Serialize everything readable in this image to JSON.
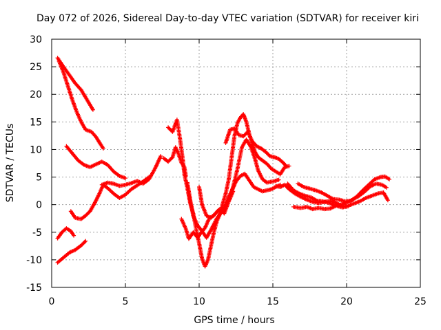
{
  "chart_data": {
    "type": "scatter",
    "title": "Day 072 of 2026, Sidereal Day-to-day VTEC variation (SDTVAR) for receiver kiri",
    "xlabel": "GPS time / hours",
    "ylabel": "SDTVAR / TECUs",
    "xlim": [
      0,
      25
    ],
    "ylim": [
      -15,
      30
    ],
    "xticks": [
      0,
      5,
      10,
      15,
      20,
      25
    ],
    "yticks": [
      -15,
      -10,
      -5,
      0,
      5,
      10,
      15,
      20,
      25,
      30
    ],
    "xtick_labels": [
      "0",
      "5",
      "10",
      "15",
      "20",
      "25"
    ],
    "ytick_labels": [
      "-15",
      "-10",
      "-5",
      "0",
      "5",
      "10",
      "15",
      "20",
      "25",
      "30"
    ],
    "grid": true,
    "marker": "+",
    "color": "#ff0000",
    "series": [
      {
        "name": "s1",
        "points": [
          [
            0.4,
            26.6
          ],
          [
            0.8,
            25.0
          ],
          [
            1.2,
            23.5
          ],
          [
            1.6,
            22.0
          ],
          [
            2.0,
            20.8
          ],
          [
            2.4,
            19.0
          ],
          [
            2.8,
            17.2
          ]
        ]
      },
      {
        "name": "s2",
        "points": [
          [
            0.5,
            26.0
          ],
          [
            0.8,
            24.0
          ],
          [
            1.1,
            21.5
          ],
          [
            1.4,
            19.0
          ],
          [
            1.7,
            16.8
          ],
          [
            2.0,
            15.0
          ],
          [
            2.3,
            13.6
          ],
          [
            2.7,
            13.2
          ],
          [
            3.0,
            12.3
          ],
          [
            3.3,
            11.0
          ],
          [
            3.5,
            10.2
          ]
        ]
      },
      {
        "name": "s3",
        "points": [
          [
            1.0,
            10.6
          ],
          [
            1.4,
            9.3
          ],
          [
            1.8,
            8.0
          ],
          [
            2.2,
            7.2
          ],
          [
            2.6,
            6.8
          ],
          [
            3.0,
            7.3
          ],
          [
            3.4,
            7.8
          ],
          [
            3.8,
            7.2
          ],
          [
            4.2,
            6.0
          ],
          [
            4.6,
            5.2
          ],
          [
            5.0,
            4.8
          ]
        ]
      },
      {
        "name": "s4",
        "points": [
          [
            1.3,
            -1.2
          ],
          [
            1.6,
            -2.4
          ],
          [
            2.0,
            -2.6
          ],
          [
            2.3,
            -2.0
          ],
          [
            2.6,
            -1.2
          ],
          [
            2.9,
            0.2
          ],
          [
            3.2,
            1.8
          ],
          [
            3.5,
            3.6
          ],
          [
            3.8,
            3.0
          ],
          [
            4.2,
            2.0
          ],
          [
            4.6,
            1.2
          ],
          [
            5.0,
            1.8
          ],
          [
            5.4,
            2.8
          ],
          [
            5.8,
            3.5
          ],
          [
            6.2,
            4.2
          ],
          [
            6.6,
            5.0
          ]
        ]
      },
      {
        "name": "s5",
        "points": [
          [
            3.4,
            3.6
          ],
          [
            3.8,
            4.0
          ],
          [
            4.2,
            3.8
          ],
          [
            4.6,
            3.4
          ],
          [
            5.0,
            3.6
          ],
          [
            5.4,
            3.9
          ],
          [
            5.8,
            4.3
          ],
          [
            6.2,
            3.8
          ],
          [
            6.6,
            4.6
          ],
          [
            7.0,
            6.5
          ],
          [
            7.4,
            8.8
          ]
        ]
      },
      {
        "name": "s6",
        "points": [
          [
            0.4,
            -6.1
          ],
          [
            0.7,
            -5.0
          ],
          [
            1.0,
            -4.3
          ],
          [
            1.3,
            -4.8
          ],
          [
            1.5,
            -5.6
          ]
        ]
      },
      {
        "name": "s7",
        "points": [
          [
            0.4,
            -10.5
          ],
          [
            0.8,
            -9.6
          ],
          [
            1.2,
            -8.7
          ],
          [
            1.6,
            -8.2
          ],
          [
            2.0,
            -7.4
          ],
          [
            2.3,
            -6.6
          ]
        ]
      },
      {
        "name": "s8",
        "points": [
          [
            7.9,
            14.0
          ],
          [
            8.2,
            13.2
          ],
          [
            8.5,
            15.4
          ],
          [
            8.7,
            12.0
          ],
          [
            8.9,
            8.0
          ],
          [
            9.0,
            5.5
          ],
          [
            9.2,
            3.0
          ],
          [
            9.4,
            0.2
          ],
          [
            9.6,
            -1.6
          ],
          [
            9.8,
            -4.5
          ],
          [
            10.0,
            -7.0
          ],
          [
            10.2,
            -9.8
          ],
          [
            10.4,
            -11.2
          ],
          [
            10.6,
            -10.0
          ],
          [
            10.8,
            -7.5
          ],
          [
            11.0,
            -5.0
          ],
          [
            11.2,
            -3.0
          ],
          [
            11.4,
            -1.8
          ],
          [
            11.6,
            0.2
          ],
          [
            11.8,
            2.0
          ],
          [
            12.0,
            4.5
          ],
          [
            12.2,
            8.5
          ],
          [
            12.4,
            12.5
          ],
          [
            12.6,
            14.8
          ],
          [
            12.8,
            15.8
          ],
          [
            13.0,
            16.4
          ],
          [
            13.2,
            15.0
          ],
          [
            13.4,
            12.8
          ],
          [
            13.6,
            11.0
          ],
          [
            13.8,
            9.5
          ],
          [
            14.0,
            8.6
          ],
          [
            14.3,
            8.0
          ],
          [
            14.6,
            7.4
          ],
          [
            14.9,
            6.5
          ],
          [
            15.2,
            6.0
          ],
          [
            15.5,
            5.5
          ],
          [
            15.8,
            6.8
          ],
          [
            16.1,
            7.0
          ]
        ]
      },
      {
        "name": "s9",
        "points": [
          [
            7.6,
            8.4
          ],
          [
            7.9,
            7.8
          ],
          [
            8.2,
            8.6
          ],
          [
            8.4,
            10.4
          ],
          [
            8.6,
            9.2
          ],
          [
            8.8,
            7.6
          ],
          [
            9.0,
            6.8
          ],
          [
            9.1,
            5.2
          ]
        ]
      },
      {
        "name": "s10",
        "points": [
          [
            9.2,
            4.0
          ],
          [
            9.4,
            0.8
          ],
          [
            9.6,
            -2.0
          ],
          [
            9.9,
            -3.8
          ],
          [
            10.2,
            -4.8
          ],
          [
            10.5,
            -6.0
          ],
          [
            10.8,
            -4.6
          ],
          [
            11.2,
            -2.5
          ],
          [
            11.6,
            -1.0
          ],
          [
            12.0,
            0.8
          ],
          [
            12.3,
            3.2
          ],
          [
            12.6,
            6.5
          ],
          [
            12.9,
            10.4
          ],
          [
            13.2,
            11.8
          ],
          [
            13.5,
            10.5
          ],
          [
            13.8,
            8.2
          ],
          [
            14.0,
            6.2
          ],
          [
            14.3,
            4.6
          ],
          [
            14.6,
            4.0
          ],
          [
            15.0,
            4.2
          ],
          [
            15.4,
            4.5
          ]
        ]
      },
      {
        "name": "s11",
        "points": [
          [
            8.8,
            -2.6
          ],
          [
            9.1,
            -4.4
          ],
          [
            9.3,
            -6.2
          ],
          [
            9.6,
            -5.0
          ],
          [
            9.9,
            -6.0
          ],
          [
            10.1,
            -5.2
          ],
          [
            10.4,
            -4.2
          ],
          [
            10.7,
            -2.4
          ],
          [
            11.0,
            -2.0
          ],
          [
            11.3,
            -1.0
          ],
          [
            11.6,
            -1.2
          ],
          [
            11.8,
            0.0
          ],
          [
            12.0,
            1.4
          ],
          [
            12.2,
            2.4
          ],
          [
            12.5,
            4.2
          ],
          [
            12.8,
            5.2
          ],
          [
            13.1,
            5.6
          ],
          [
            13.4,
            4.4
          ],
          [
            13.7,
            3.2
          ],
          [
            14.0,
            2.8
          ],
          [
            14.3,
            2.4
          ],
          [
            14.6,
            2.6
          ],
          [
            14.9,
            2.8
          ],
          [
            15.2,
            3.2
          ],
          [
            15.5,
            3.6
          ]
        ]
      },
      {
        "name": "s12",
        "points": [
          [
            10.0,
            3.2
          ],
          [
            10.2,
            0.0
          ],
          [
            10.5,
            -2.0
          ],
          [
            10.8,
            -2.4
          ],
          [
            11.1,
            -1.6
          ],
          [
            11.4,
            -0.8
          ],
          [
            11.7,
            -1.6
          ],
          [
            12.0,
            0.5
          ],
          [
            12.3,
            2.4
          ]
        ]
      },
      {
        "name": "s13",
        "points": [
          [
            11.8,
            11.2
          ],
          [
            12.1,
            13.6
          ],
          [
            12.4,
            13.8
          ],
          [
            12.7,
            12.6
          ],
          [
            13.0,
            12.4
          ],
          [
            13.3,
            13.2
          ],
          [
            13.6,
            11.5
          ],
          [
            13.9,
            10.6
          ],
          [
            14.2,
            10.2
          ],
          [
            14.5,
            9.6
          ],
          [
            14.8,
            8.8
          ],
          [
            15.1,
            8.6
          ],
          [
            15.4,
            8.3
          ],
          [
            15.7,
            7.6
          ],
          [
            15.9,
            7.0
          ]
        ]
      },
      {
        "name": "s14",
        "points": [
          [
            15.2,
            3.4
          ],
          [
            15.5,
            3.2
          ],
          [
            15.8,
            3.6
          ],
          [
            16.1,
            2.8
          ],
          [
            16.5,
            2.0
          ],
          [
            16.9,
            1.4
          ],
          [
            17.3,
            0.9
          ],
          [
            17.7,
            0.5
          ],
          [
            18.1,
            0.3
          ],
          [
            18.5,
            0.5
          ],
          [
            18.9,
            0.7
          ],
          [
            19.3,
            0.3
          ],
          [
            19.7,
            -0.3
          ],
          [
            20.1,
            -0.2
          ],
          [
            20.5,
            0.2
          ],
          [
            20.9,
            0.6
          ],
          [
            21.3,
            1.2
          ],
          [
            21.7,
            1.6
          ],
          [
            22.1,
            2.0
          ],
          [
            22.5,
            2.2
          ],
          [
            22.8,
            0.8
          ]
        ]
      },
      {
        "name": "s15",
        "points": [
          [
            16.0,
            3.8
          ],
          [
            16.4,
            2.6
          ],
          [
            16.8,
            2.0
          ],
          [
            17.2,
            1.6
          ],
          [
            17.6,
            1.3
          ],
          [
            18.0,
            0.7
          ],
          [
            18.4,
            0.6
          ],
          [
            18.8,
            0.3
          ],
          [
            19.2,
            -0.1
          ],
          [
            19.6,
            0.0
          ],
          [
            20.0,
            0.4
          ],
          [
            20.4,
            0.9
          ],
          [
            20.8,
            1.5
          ],
          [
            21.2,
            2.3
          ],
          [
            21.6,
            3.3
          ],
          [
            22.0,
            3.8
          ],
          [
            22.4,
            3.6
          ],
          [
            22.7,
            3.1
          ]
        ]
      },
      {
        "name": "s16",
        "points": [
          [
            16.7,
            3.8
          ],
          [
            17.1,
            3.2
          ],
          [
            17.5,
            2.9
          ],
          [
            17.9,
            2.6
          ],
          [
            18.3,
            2.2
          ],
          [
            18.7,
            1.6
          ],
          [
            19.1,
            1.0
          ],
          [
            19.5,
            0.9
          ],
          [
            19.9,
            0.6
          ],
          [
            20.3,
            0.7
          ],
          [
            20.7,
            1.5
          ],
          [
            21.1,
            2.6
          ],
          [
            21.5,
            3.6
          ],
          [
            21.9,
            4.6
          ],
          [
            22.3,
            5.0
          ],
          [
            22.6,
            5.1
          ],
          [
            22.9,
            4.6
          ]
        ]
      },
      {
        "name": "s17",
        "points": [
          [
            16.4,
            -0.4
          ],
          [
            16.9,
            -0.6
          ],
          [
            17.3,
            -0.4
          ],
          [
            17.7,
            -0.8
          ],
          [
            18.1,
            -0.6
          ],
          [
            18.5,
            -0.8
          ],
          [
            18.9,
            -0.7
          ],
          [
            19.3,
            -0.2
          ],
          [
            19.7,
            -0.5
          ],
          [
            20.1,
            -0.3
          ]
        ]
      }
    ]
  }
}
